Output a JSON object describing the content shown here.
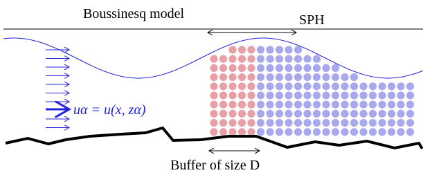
{
  "labels": {
    "boussinesq": "Boussinesq model",
    "sph": "SPH",
    "velocity": "uα = u(x, zα)",
    "buffer": "Buffer of size D"
  }
}
